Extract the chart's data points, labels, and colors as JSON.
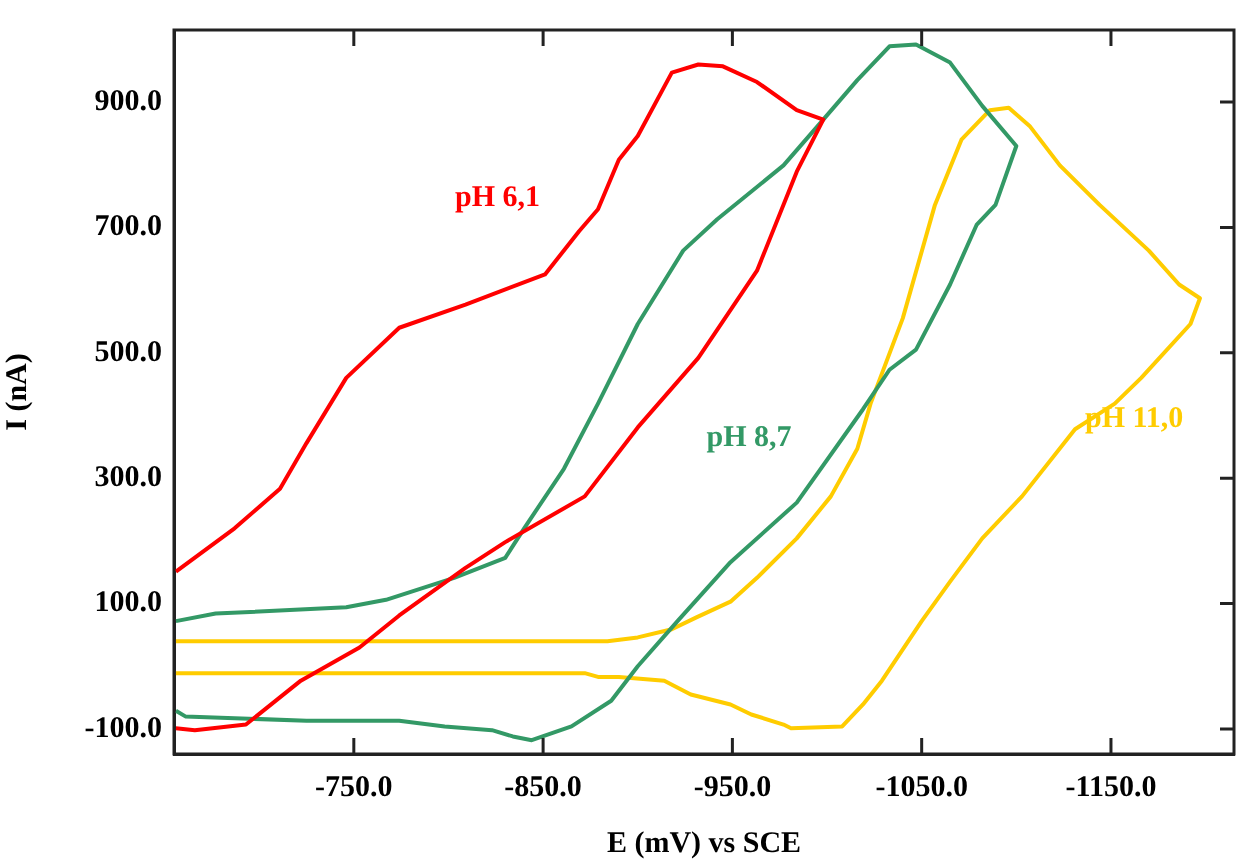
{
  "chart_data": {
    "type": "line",
    "xlabel": "E (mV) vs SCE",
    "ylabel": "I (nA)",
    "xlim": [
      -655,
      -1215
    ],
    "ylim": [
      -140,
      1015
    ],
    "xticks": [
      {
        "value": -750,
        "label": "-750.0"
      },
      {
        "value": -850,
        "label": "-850.0"
      },
      {
        "value": -950,
        "label": "-950.0"
      },
      {
        "value": -1050,
        "label": "-1050.0"
      },
      {
        "value": -1150,
        "label": "-1150.0"
      }
    ],
    "yticks": [
      {
        "value": -100,
        "label": "-100.0"
      },
      {
        "value": 100,
        "label": "100.0"
      },
      {
        "value": 300,
        "label": "300.0"
      },
      {
        "value": 500,
        "label": "500.0"
      },
      {
        "value": 700,
        "label": "700.0"
      },
      {
        "value": 900,
        "label": "900.0"
      }
    ],
    "grid": false,
    "legend": false,
    "marker": "none",
    "line_style": "solid",
    "series": [
      {
        "name": "pH 6,1",
        "color": "#ff0000",
        "x": [
          -656,
          -666,
          -693,
          -722,
          -753,
          -774,
          -809,
          -830,
          -872,
          -900,
          -932,
          -963,
          -984,
          -998,
          -984,
          -963,
          -945,
          -932,
          -918,
          -900,
          -890,
          -879,
          -869,
          -851,
          -809,
          -774,
          -746,
          -725,
          -711,
          -687,
          -656
        ],
        "values": [
          -99,
          -102,
          -93,
          -23,
          30,
          81,
          157,
          198,
          271,
          381,
          492,
          631,
          789,
          872,
          887,
          932,
          957,
          960,
          947,
          846,
          808,
          729,
          694,
          625,
          577,
          540,
          460,
          356,
          283,
          220,
          151
        ]
      },
      {
        "name": "pH 8,7",
        "color": "#339966",
        "x": [
          -656,
          -677,
          -746,
          -767,
          -803,
          -830,
          -840,
          -861,
          -879,
          -900,
          -924,
          -942,
          -977,
          -998,
          -1016,
          -1033,
          -1047,
          -1065,
          -1082,
          -1100,
          -1089,
          -1079,
          -1065,
          -1047,
          -1033,
          -1019,
          -984,
          -949,
          -921,
          -900,
          -886,
          -865,
          -844,
          -834,
          -823,
          -798,
          -774,
          -725,
          -661,
          -656
        ],
        "values": [
          72,
          84,
          94,
          106,
          141,
          173,
          220,
          315,
          419,
          546,
          663,
          713,
          799,
          872,
          935,
          989,
          992,
          963,
          894,
          830,
          736,
          704,
          609,
          505,
          473,
          410,
          261,
          166,
          72,
          0,
          -55,
          -96,
          -118,
          -112,
          -102,
          -96,
          -87,
          -87,
          -80,
          -71
        ]
      },
      {
        "name": "pH 11,0",
        "color": "#ffcc00",
        "x": [
          -656,
          -884,
          -900,
          -918,
          -931,
          -949,
          -963,
          -984,
          -1002,
          -1016,
          -1023,
          -1040,
          -1057,
          -1071,
          -1086,
          -1096,
          -1107,
          -1123,
          -1144,
          -1170,
          -1186,
          -1197,
          -1192,
          -1166,
          -1152,
          -1131,
          -1103,
          -1082,
          -1065,
          -1050,
          -1029,
          -1019,
          -1008,
          -981,
          -977,
          -960,
          -949,
          -928,
          -914,
          -890,
          -879,
          -872,
          -656
        ],
        "values": [
          40,
          40,
          46,
          59,
          78,
          103,
          141,
          204,
          271,
          347,
          419,
          555,
          736,
          840,
          887,
          891,
          862,
          799,
          736,
          663,
          609,
          587,
          546,
          460,
          419,
          378,
          271,
          204,
          135,
          72,
          -23,
          -61,
          -96,
          -99,
          -93,
          -77,
          -61,
          -45,
          -23,
          -17,
          -17,
          -11,
          -11
        ]
      }
    ]
  }
}
